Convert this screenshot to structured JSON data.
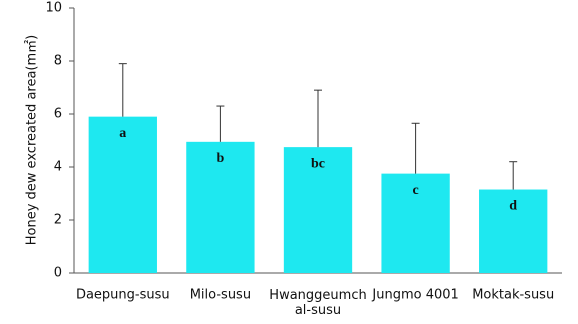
{
  "chart_data": {
    "type": "bar",
    "ylabel": "Honey dew excreated area(m㎡)",
    "categories": [
      "Daepung-susu",
      "Milo-susu",
      "Hwanggeumch\nal-susu",
      "Jungmo 4001",
      "Moktak-susu"
    ],
    "values": [
      5.9,
      4.95,
      4.75,
      3.75,
      3.15
    ],
    "errors": [
      2.0,
      1.35,
      2.15,
      1.9,
      1.05
    ],
    "letters": [
      "a",
      "b",
      "bc",
      "c",
      "d"
    ],
    "color": "#1ee8f0",
    "ylim": [
      0,
      10
    ],
    "yticks": [
      0,
      2,
      4,
      6,
      8,
      10
    ],
    "grid": false
  }
}
